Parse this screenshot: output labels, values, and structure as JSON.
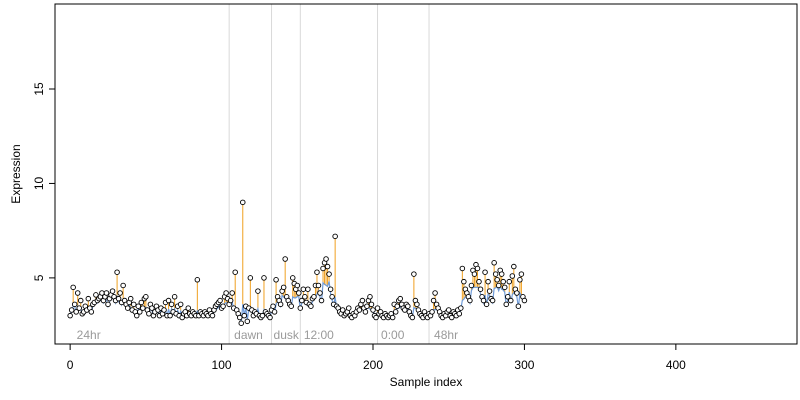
{
  "chart_data": {
    "type": "scatter",
    "title": "",
    "xlabel": "Sample index",
    "ylabel": "Expression",
    "xlim": [
      -10,
      480
    ],
    "ylim": [
      1.5,
      19.5
    ],
    "x_ticks": [
      0,
      100,
      200,
      300,
      400
    ],
    "y_ticks": [
      5,
      10,
      15
    ],
    "grid": false,
    "legend": "none",
    "colors": {
      "points": "#000000",
      "residual_up": "#f0a020",
      "residual_down": "#6f9bd8",
      "divider": "#d9d9d9",
      "condition_label": "#9a9a9a"
    },
    "dividers": [
      105,
      133,
      152,
      203,
      237
    ],
    "conditions": [
      {
        "label": "24hr",
        "x": 3
      },
      {
        "label": "dawn",
        "x": 107
      },
      {
        "label": "dusk",
        "x": 133
      },
      {
        "label": "12:00",
        "x": 153
      },
      {
        "label": "0:00",
        "x": 204
      },
      {
        "label": "48hr",
        "x": 239
      }
    ],
    "series": [
      {
        "values": [
          3.0,
          3.3,
          4.5,
          3.6,
          3.2,
          4.2,
          3.4,
          3.8,
          3.1,
          3.2,
          3.5,
          3.3,
          3.9,
          3.4,
          3.2,
          3.6,
          3.7,
          4.1,
          3.8,
          3.9,
          4.0,
          4.2,
          3.8,
          4.0,
          4.2,
          3.6,
          3.9,
          4.1,
          4.3,
          4.0,
          3.8,
          5.3,
          3.9,
          4.2,
          3.7,
          4.6,
          3.8,
          3.6,
          3.4,
          3.7,
          3.9,
          3.3,
          3.6,
          3.2,
          3.0,
          3.5,
          3.2,
          3.7,
          3.4,
          3.9,
          4.0,
          3.3,
          3.1,
          3.6,
          3.4,
          3.0,
          3.2,
          3.5,
          3.3,
          3.0,
          3.4,
          3.1,
          3.3,
          3.7,
          3.0,
          3.8,
          3.0,
          3.6,
          3.2,
          4.0,
          3.1,
          3.5,
          3.0,
          3.6,
          2.9,
          3.1,
          3.2,
          3.0,
          3.4,
          3.1,
          3.0,
          3.2,
          3.1,
          3.0,
          4.9,
          3.0,
          3.2,
          3.1,
          3.0,
          3.2,
          3.1,
          3.0,
          3.3,
          3.1,
          3.0,
          3.3,
          3.5,
          3.6,
          3.7,
          3.8,
          3.4,
          3.5,
          4.0,
          4.2,
          3.9,
          3.6,
          3.8,
          4.2,
          3.4,
          5.3,
          3.3,
          3.1,
          2.9,
          2.6,
          9.0,
          3.0,
          3.5,
          2.7,
          3.4,
          5.0,
          3.3,
          3.0,
          3.2,
          3.1,
          4.3,
          3.0,
          2.9,
          3.0,
          5.0,
          3.2,
          3.1,
          3.0,
          2.9,
          3.3,
          3.5,
          3.2,
          4.9,
          4.0,
          3.8,
          3.6,
          4.3,
          4.5,
          6.0,
          4.0,
          3.8,
          3.6,
          3.5,
          5.0,
          4.7,
          4.4,
          4.6,
          4.2,
          3.4,
          3.8,
          4.4,
          4.0,
          3.7,
          4.4,
          3.6,
          3.5,
          3.9,
          4.0,
          4.6,
          5.3,
          4.6,
          4.2,
          3.8,
          5.5,
          5.8,
          6.0,
          5.6,
          5.2,
          4.4,
          4.0,
          3.6,
          7.2,
          3.5,
          3.4,
          3.2,
          3.1,
          3.3,
          3.0,
          3.1,
          3.2,
          3.4,
          3.0,
          2.9,
          3.1,
          3.0,
          3.2,
          3.4,
          3.3,
          3.6,
          3.8,
          3.4,
          3.2,
          3.5,
          3.8,
          4.0,
          3.6,
          3.3,
          3.0,
          2.9,
          3.4,
          3.1,
          3.2,
          3.0,
          2.9,
          3.1,
          3.0,
          2.9,
          3.0,
          3.1,
          2.9,
          3.6,
          3.2,
          3.5,
          3.8,
          3.9,
          3.6,
          3.4,
          3.3,
          3.6,
          3.5,
          3.2,
          3.0,
          2.9,
          5.2,
          3.8,
          3.6,
          3.3,
          3.1,
          3.0,
          2.9,
          3.2,
          3.0,
          2.9,
          3.1,
          3.0,
          3.2,
          3.8,
          4.2,
          3.6,
          3.4,
          3.2,
          3.0,
          2.9,
          3.1,
          3.0,
          3.2,
          3.3,
          3.0,
          2.9,
          3.2,
          3.1,
          3.0,
          3.3,
          3.1,
          3.4,
          5.5,
          4.8,
          4.4,
          4.2,
          4.0,
          3.8,
          4.6,
          5.4,
          5.2,
          5.7,
          5.5,
          4.8,
          4.4,
          4.0,
          3.8,
          5.3,
          3.6,
          4.8,
          4.3,
          3.9,
          3.8,
          5.8,
          5.2,
          4.9,
          4.6,
          5.4,
          5.2,
          4.8,
          4.5,
          3.6,
          4.0,
          4.8,
          3.8,
          5.1,
          5.6,
          4.4,
          4.2,
          3.5,
          4.9,
          5.2,
          4.0,
          3.8
        ]
      }
    ]
  }
}
